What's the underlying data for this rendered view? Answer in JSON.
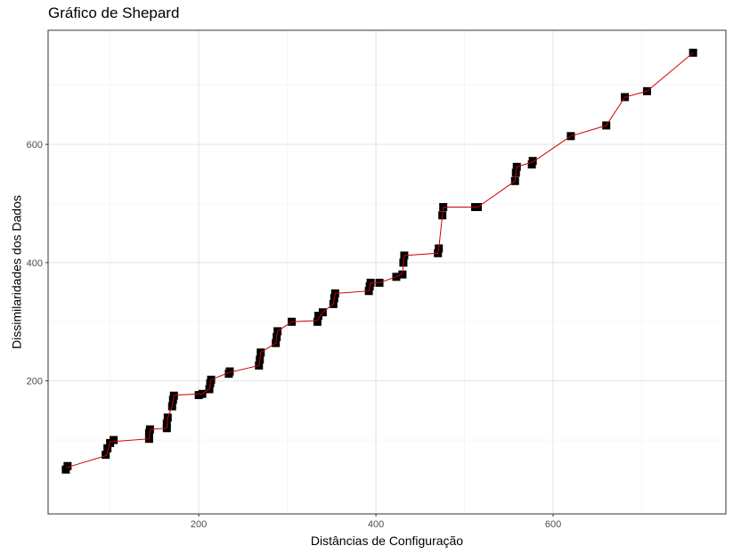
{
  "chart_data": {
    "type": "scatter",
    "title": "Gráfico de Shepard",
    "xlabel": "Distâncias de Configuração",
    "ylabel": "Dissimilaridades dos Dados",
    "xlim": [
      30,
      795
    ],
    "ylim": [
      -25,
      793
    ],
    "x_ticks": [
      200,
      400,
      600
    ],
    "y_ticks": [
      200,
      400,
      600
    ],
    "grid": true,
    "point_color": "#000000",
    "line_color": "#cc0000",
    "points": [
      {
        "x": 50,
        "y": 50
      },
      {
        "x": 52,
        "y": 56
      },
      {
        "x": 95,
        "y": 75
      },
      {
        "x": 97,
        "y": 86
      },
      {
        "x": 100,
        "y": 95
      },
      {
        "x": 104,
        "y": 100
      },
      {
        "x": 144,
        "y": 102
      },
      {
        "x": 144,
        "y": 112
      },
      {
        "x": 145,
        "y": 118
      },
      {
        "x": 164,
        "y": 120
      },
      {
        "x": 164,
        "y": 128
      },
      {
        "x": 165,
        "y": 138
      },
      {
        "x": 170,
        "y": 157
      },
      {
        "x": 171,
        "y": 168
      },
      {
        "x": 172,
        "y": 175
      },
      {
        "x": 200,
        "y": 176
      },
      {
        "x": 204,
        "y": 178
      },
      {
        "x": 212,
        "y": 186
      },
      {
        "x": 213,
        "y": 196
      },
      {
        "x": 214,
        "y": 202
      },
      {
        "x": 234,
        "y": 212
      },
      {
        "x": 235,
        "y": 216
      },
      {
        "x": 268,
        "y": 226
      },
      {
        "x": 269,
        "y": 236
      },
      {
        "x": 270,
        "y": 248
      },
      {
        "x": 287,
        "y": 264
      },
      {
        "x": 288,
        "y": 274
      },
      {
        "x": 289,
        "y": 284
      },
      {
        "x": 305,
        "y": 300
      },
      {
        "x": 334,
        "y": 300
      },
      {
        "x": 335,
        "y": 310
      },
      {
        "x": 340,
        "y": 316
      },
      {
        "x": 352,
        "y": 330
      },
      {
        "x": 353,
        "y": 340
      },
      {
        "x": 354,
        "y": 348
      },
      {
        "x": 392,
        "y": 352
      },
      {
        "x": 393,
        "y": 360
      },
      {
        "x": 394,
        "y": 366
      },
      {
        "x": 404,
        "y": 366
      },
      {
        "x": 423,
        "y": 376
      },
      {
        "x": 430,
        "y": 380
      },
      {
        "x": 431,
        "y": 400
      },
      {
        "x": 432,
        "y": 412
      },
      {
        "x": 470,
        "y": 416
      },
      {
        "x": 471,
        "y": 424
      },
      {
        "x": 475,
        "y": 480
      },
      {
        "x": 476,
        "y": 494
      },
      {
        "x": 512,
        "y": 494
      },
      {
        "x": 515,
        "y": 494
      },
      {
        "x": 557,
        "y": 538
      },
      {
        "x": 558,
        "y": 552
      },
      {
        "x": 559,
        "y": 562
      },
      {
        "x": 576,
        "y": 566
      },
      {
        "x": 577,
        "y": 572
      },
      {
        "x": 620,
        "y": 614
      },
      {
        "x": 660,
        "y": 632
      },
      {
        "x": 681,
        "y": 680
      },
      {
        "x": 706,
        "y": 690
      },
      {
        "x": 758,
        "y": 755
      }
    ],
    "fit_line": [
      {
        "x": 50,
        "y": 53
      },
      {
        "x": 96,
        "y": 74
      },
      {
        "x": 100,
        "y": 97
      },
      {
        "x": 144,
        "y": 102
      },
      {
        "x": 145,
        "y": 118
      },
      {
        "x": 164,
        "y": 120
      },
      {
        "x": 165,
        "y": 138
      },
      {
        "x": 170,
        "y": 157
      },
      {
        "x": 172,
        "y": 176
      },
      {
        "x": 204,
        "y": 178
      },
      {
        "x": 212,
        "y": 186
      },
      {
        "x": 214,
        "y": 202
      },
      {
        "x": 234,
        "y": 214
      },
      {
        "x": 268,
        "y": 226
      },
      {
        "x": 270,
        "y": 248
      },
      {
        "x": 287,
        "y": 264
      },
      {
        "x": 289,
        "y": 284
      },
      {
        "x": 305,
        "y": 300
      },
      {
        "x": 334,
        "y": 302
      },
      {
        "x": 340,
        "y": 316
      },
      {
        "x": 352,
        "y": 330
      },
      {
        "x": 354,
        "y": 348
      },
      {
        "x": 392,
        "y": 352
      },
      {
        "x": 394,
        "y": 366
      },
      {
        "x": 404,
        "y": 366
      },
      {
        "x": 423,
        "y": 376
      },
      {
        "x": 430,
        "y": 382
      },
      {
        "x": 432,
        "y": 412
      },
      {
        "x": 470,
        "y": 416
      },
      {
        "x": 471,
        "y": 424
      },
      {
        "x": 475,
        "y": 480
      },
      {
        "x": 476,
        "y": 494
      },
      {
        "x": 515,
        "y": 494
      },
      {
        "x": 557,
        "y": 538
      },
      {
        "x": 559,
        "y": 562
      },
      {
        "x": 577,
        "y": 570
      },
      {
        "x": 620,
        "y": 614
      },
      {
        "x": 660,
        "y": 632
      },
      {
        "x": 681,
        "y": 680
      },
      {
        "x": 706,
        "y": 690
      },
      {
        "x": 758,
        "y": 755
      }
    ]
  }
}
